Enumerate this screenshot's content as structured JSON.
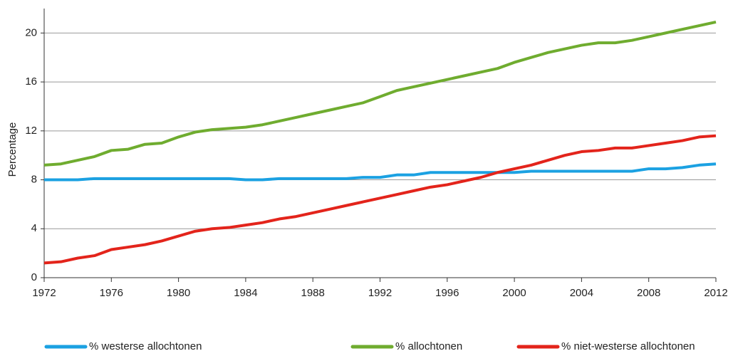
{
  "chart_data": {
    "type": "line",
    "y_label": "Percentage",
    "x": [
      1972,
      1973,
      1974,
      1975,
      1976,
      1977,
      1978,
      1979,
      1980,
      1981,
      1982,
      1983,
      1984,
      1985,
      1986,
      1987,
      1988,
      1989,
      1990,
      1991,
      1992,
      1993,
      1994,
      1995,
      1996,
      1997,
      1998,
      1999,
      2000,
      2001,
      2002,
      2003,
      2004,
      2005,
      2006,
      2007,
      2008,
      2009,
      2010,
      2011,
      2012
    ],
    "series": [
      {
        "name": "% westerse allochtonen",
        "color": "#1ba1e2",
        "values": [
          8.0,
          8.0,
          8.0,
          8.1,
          8.1,
          8.1,
          8.1,
          8.1,
          8.1,
          8.1,
          8.1,
          8.1,
          8.0,
          8.0,
          8.1,
          8.1,
          8.1,
          8.1,
          8.1,
          8.2,
          8.2,
          8.4,
          8.4,
          8.6,
          8.6,
          8.6,
          8.6,
          8.6,
          8.6,
          8.7,
          8.7,
          8.7,
          8.7,
          8.7,
          8.7,
          8.7,
          8.9,
          8.9,
          9.0,
          9.2,
          9.3
        ]
      },
      {
        "name": "% allochtonen",
        "color": "#6fac2f",
        "values": [
          9.2,
          9.3,
          9.6,
          9.9,
          10.4,
          10.5,
          10.9,
          11.0,
          11.5,
          11.9,
          12.1,
          12.2,
          12.3,
          12.5,
          12.8,
          13.1,
          13.4,
          13.7,
          14.0,
          14.3,
          14.8,
          15.3,
          15.6,
          15.9,
          16.2,
          16.5,
          16.8,
          17.1,
          17.6,
          18.0,
          18.4,
          18.7,
          19.0,
          19.2,
          19.2,
          19.4,
          19.7,
          20.0,
          20.3,
          20.6,
          20.9
        ]
      },
      {
        "name": "% niet-westerse allochtonen",
        "color": "#e3241b",
        "values": [
          1.2,
          1.3,
          1.6,
          1.8,
          2.3,
          2.5,
          2.7,
          3.0,
          3.4,
          3.8,
          4.0,
          4.1,
          4.3,
          4.5,
          4.8,
          5.0,
          5.3,
          5.6,
          5.9,
          6.2,
          6.5,
          6.8,
          7.1,
          7.4,
          7.6,
          7.9,
          8.2,
          8.6,
          8.9,
          9.2,
          9.6,
          10.0,
          10.3,
          10.4,
          10.6,
          10.6,
          10.8,
          11.0,
          11.2,
          11.5,
          11.6
        ]
      }
    ],
    "xlim": [
      1972,
      2012
    ],
    "xticks": [
      1972,
      1976,
      1980,
      1984,
      1988,
      1992,
      1996,
      2000,
      2004,
      2008,
      2012
    ],
    "ylim": [
      0,
      22
    ],
    "yticks": [
      0,
      4,
      8,
      12,
      16,
      20
    ],
    "grid": true
  }
}
